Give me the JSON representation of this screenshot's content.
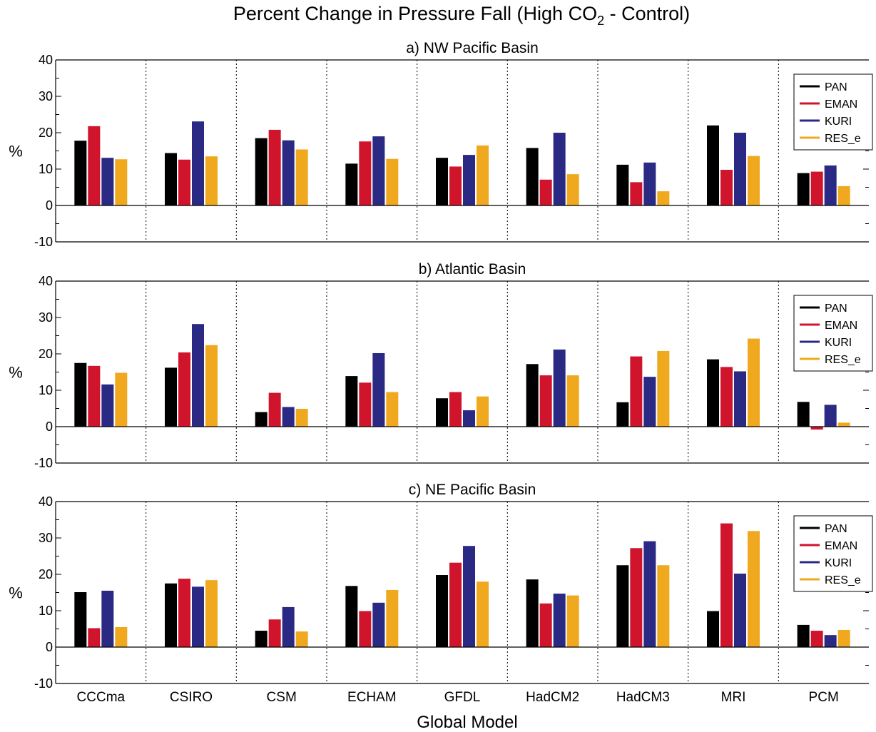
{
  "title_prefix": "Percent Change in Pressure Fall (High CO",
  "title_sub": "2",
  "title_suffix": " - Control)",
  "xlabel": "Global Model",
  "ylabel": "%",
  "colors": {
    "PAN": "#000000",
    "EMAN": "#d0142c",
    "KURI": "#2a2a85",
    "RES_e": "#f0a81e"
  },
  "chart_data": [
    {
      "type": "bar",
      "title": "a) NW Pacific Basin",
      "ylim": [
        -10,
        40
      ],
      "yticks": [
        -10,
        0,
        10,
        20,
        30,
        40
      ],
      "yticklabels": [
        "-10",
        "0",
        "10",
        "20",
        "30",
        "40"
      ],
      "legend": "top-right",
      "categories": [
        "CCCma",
        "CSIRO",
        "CSM",
        "ECHAM",
        "GFDL",
        "HadCM2",
        "HadCM3",
        "MRI",
        "PCM"
      ],
      "series": [
        {
          "name": "PAN",
          "values": [
            17.8,
            14.4,
            18.5,
            11.5,
            13.1,
            15.8,
            11.2,
            22.0,
            8.9
          ]
        },
        {
          "name": "EMAN",
          "values": [
            21.8,
            12.6,
            20.8,
            17.6,
            10.7,
            7.1,
            6.4,
            9.8,
            9.3
          ]
        },
        {
          "name": "KURI",
          "values": [
            13.1,
            23.1,
            17.9,
            19.0,
            13.9,
            20.0,
            11.8,
            20.0,
            11.0
          ]
        },
        {
          "name": "RES_e",
          "values": [
            12.7,
            13.5,
            15.4,
            12.8,
            16.5,
            8.6,
            3.9,
            13.6,
            5.3
          ]
        }
      ]
    },
    {
      "type": "bar",
      "title": "b) Atlantic Basin",
      "ylim": [
        -10,
        40
      ],
      "yticks": [
        -10,
        0,
        10,
        20,
        30,
        40
      ],
      "yticklabels": [
        "-10",
        "0",
        "10",
        "20",
        "30",
        "40"
      ],
      "legend": "top-right",
      "categories": [
        "CCCma",
        "CSIRO",
        "CSM",
        "ECHAM",
        "GFDL",
        "HadCM2",
        "HadCM3",
        "MRI",
        "PCM"
      ],
      "series": [
        {
          "name": "PAN",
          "values": [
            17.5,
            16.2,
            4.0,
            13.9,
            7.8,
            17.2,
            6.7,
            18.5,
            6.8
          ]
        },
        {
          "name": "EMAN",
          "values": [
            16.7,
            20.4,
            9.3,
            12.1,
            9.5,
            14.1,
            19.3,
            16.4,
            -0.8
          ]
        },
        {
          "name": "KURI",
          "values": [
            11.6,
            28.2,
            5.4,
            20.2,
            4.5,
            21.2,
            13.7,
            15.2,
            6.0
          ]
        },
        {
          "name": "RES_e",
          "values": [
            14.8,
            22.4,
            4.9,
            9.5,
            8.3,
            14.1,
            20.8,
            24.2,
            1.1
          ]
        }
      ]
    },
    {
      "type": "bar",
      "title": "c) NE Pacific Basin",
      "ylim": [
        -10,
        40
      ],
      "yticks": [
        -10,
        0,
        10,
        20,
        30,
        40
      ],
      "yticklabels": [
        "-10",
        "0",
        "10",
        "20",
        "30",
        "40"
      ],
      "legend": "top-right",
      "categories": [
        "CCCma",
        "CSIRO",
        "CSM",
        "ECHAM",
        "GFDL",
        "HadCM2",
        "HadCM3",
        "MRI",
        "PCM"
      ],
      "series": [
        {
          "name": "PAN",
          "values": [
            15.1,
            17.5,
            4.5,
            16.8,
            19.8,
            18.6,
            22.5,
            9.9,
            6.1
          ]
        },
        {
          "name": "EMAN",
          "values": [
            5.2,
            18.8,
            7.6,
            9.9,
            23.2,
            12.0,
            27.2,
            34.0,
            4.5
          ]
        },
        {
          "name": "KURI",
          "values": [
            15.5,
            16.6,
            11.0,
            12.2,
            27.8,
            14.7,
            29.1,
            20.2,
            3.3
          ]
        },
        {
          "name": "RES_e",
          "values": [
            5.5,
            18.4,
            4.3,
            15.7,
            18.0,
            14.2,
            22.5,
            31.9,
            4.7
          ]
        }
      ]
    }
  ]
}
